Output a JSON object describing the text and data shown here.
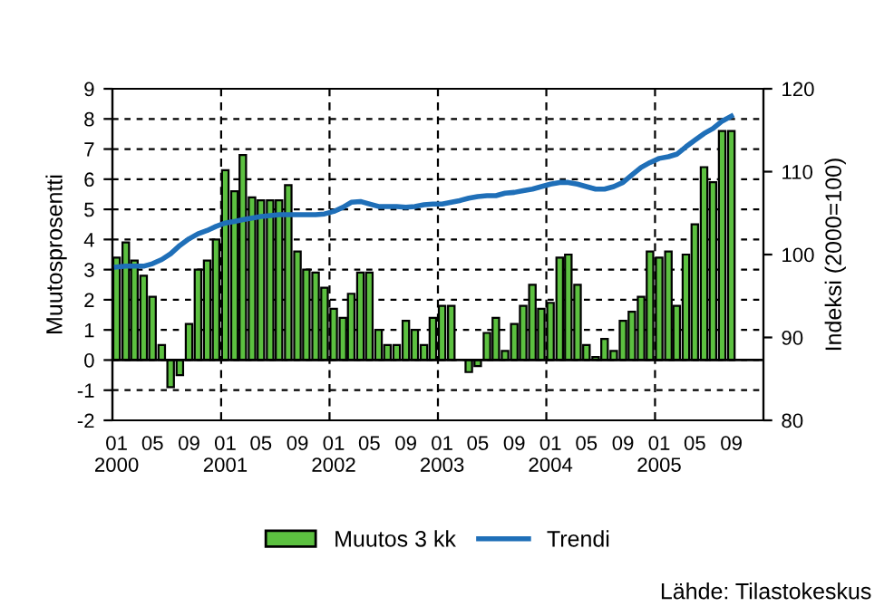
{
  "chart_data": {
    "type": "bar",
    "x": [
      "2000-01",
      "2000-02",
      "2000-03",
      "2000-04",
      "2000-05",
      "2000-06",
      "2000-07",
      "2000-08",
      "2000-09",
      "2000-10",
      "2000-11",
      "2000-12",
      "2001-01",
      "2001-02",
      "2001-03",
      "2001-04",
      "2001-05",
      "2001-06",
      "2001-07",
      "2001-08",
      "2001-09",
      "2001-10",
      "2001-11",
      "2001-12",
      "2002-01",
      "2002-02",
      "2002-03",
      "2002-04",
      "2002-05",
      "2002-06",
      "2002-07",
      "2002-08",
      "2002-09",
      "2002-10",
      "2002-11",
      "2002-12",
      "2003-01",
      "2003-02",
      "2003-03",
      "2003-04",
      "2003-05",
      "2003-06",
      "2003-07",
      "2003-08",
      "2003-09",
      "2003-10",
      "2003-11",
      "2003-12",
      "2004-01",
      "2004-02",
      "2004-03",
      "2004-04",
      "2004-05",
      "2004-06",
      "2004-07",
      "2004-08",
      "2004-09",
      "2004-10",
      "2004-11",
      "2004-12",
      "2005-01",
      "2005-02",
      "2005-03",
      "2005-04",
      "2005-05",
      "2005-06",
      "2005-07",
      "2005-08",
      "2005-09"
    ],
    "series": [
      {
        "name": "Muutos 3 kk",
        "color": "#5cc040",
        "values": [
          3.4,
          3.9,
          3.3,
          2.8,
          2.1,
          0.5,
          -0.9,
          -0.5,
          1.2,
          3.0,
          3.3,
          4.0,
          6.3,
          5.6,
          6.8,
          5.4,
          5.3,
          5.3,
          5.3,
          5.8,
          3.6,
          3.0,
          2.9,
          2.4,
          1.7,
          1.4,
          2.2,
          2.9,
          2.9,
          1.0,
          0.5,
          0.5,
          1.3,
          1.0,
          0.5,
          1.4,
          1.8,
          1.8,
          null,
          -0.4,
          -0.2,
          0.9,
          1.4,
          0.3,
          1.2,
          1.8,
          2.5,
          1.7,
          1.9,
          3.4,
          3.5,
          2.5,
          0.5,
          0.1,
          0.7,
          0.3,
          1.3,
          1.6,
          2.1,
          3.6,
          3.4,
          3.6,
          1.8,
          3.5,
          4.5,
          6.4,
          5.9,
          7.6,
          7.6
        ]
      },
      {
        "name": "Trendi",
        "type": "line",
        "axis": "y2",
        "color": "#1f6fb8",
        "values": [
          98.5,
          98.6,
          98.6,
          98.6,
          98.9,
          99.4,
          100.1,
          101.1,
          101.9,
          102.5,
          102.9,
          103.4,
          103.8,
          104.0,
          104.2,
          104.4,
          104.6,
          104.7,
          104.8,
          104.8,
          104.8,
          104.8,
          104.8,
          104.9,
          105.2,
          105.7,
          106.3,
          106.4,
          106.1,
          105.8,
          105.8,
          105.8,
          105.7,
          105.8,
          106.0,
          106.1,
          106.1,
          106.3,
          106.5,
          106.8,
          107.0,
          107.1,
          107.1,
          107.4,
          107.5,
          107.7,
          107.9,
          108.2,
          108.5,
          108.7,
          108.7,
          108.5,
          108.2,
          107.9,
          107.9,
          108.2,
          108.7,
          109.6,
          110.5,
          111.1,
          111.6,
          111.8,
          112.1,
          113.0,
          113.8,
          114.6,
          115.2,
          116.1,
          116.7
        ]
      }
    ],
    "ylabel": "Muutosprosentti",
    "y2label": "Indeksi (2000=100)",
    "xlim": [
      "2000-01-01",
      "2006-01-01"
    ],
    "xticks": [
      {
        "value": "2000-01",
        "label": "01\n2000"
      },
      {
        "value": "2000-05",
        "label": "05"
      },
      {
        "value": "2000-09",
        "label": "09"
      },
      {
        "value": "2001-01",
        "label": "01\n2001"
      },
      {
        "value": "2001-05",
        "label": "05"
      },
      {
        "value": "2001-09",
        "label": "09"
      },
      {
        "value": "2002-01",
        "label": "01\n2002"
      },
      {
        "value": "2002-05",
        "label": "05"
      },
      {
        "value": "2002-09",
        "label": "09"
      },
      {
        "value": "2003-01",
        "label": "01\n2003"
      },
      {
        "value": "2003-05",
        "label": "05"
      },
      {
        "value": "2003-09",
        "label": "09"
      },
      {
        "value": "2004-01",
        "label": "01\n2004"
      },
      {
        "value": "2004-05",
        "label": "05"
      },
      {
        "value": "2004-09",
        "label": "09"
      },
      {
        "value": "2005-01",
        "label": "01\n2005"
      },
      {
        "value": "2005-05",
        "label": "05"
      },
      {
        "value": "2005-09",
        "label": "09"
      }
    ],
    "ylim": [
      -2,
      9
    ],
    "yticks": [
      -2,
      -1,
      0,
      1,
      2,
      3,
      4,
      5,
      6,
      7,
      8,
      9
    ],
    "y2lim": [
      80,
      120
    ],
    "y2ticks": [
      80,
      90,
      100,
      110,
      120
    ],
    "ref_lines": [
      {
        "axis": "x",
        "value": "2001-01-01",
        "line_style": "dashed",
        "color": "#000000"
      },
      {
        "axis": "x",
        "value": "2002-01-01",
        "line_style": "dashed",
        "color": "#000000"
      },
      {
        "axis": "x",
        "value": "2003-01-01",
        "line_style": "dashed",
        "color": "#000000"
      },
      {
        "axis": "x",
        "value": "2004-01-01",
        "line_style": "dashed",
        "color": "#000000"
      },
      {
        "axis": "x",
        "value": "2005-01-01",
        "line_style": "dashed",
        "color": "#000000"
      }
    ],
    "grid": "y",
    "legend": "bottom",
    "annotations": [
      "Lähde: Tilastokeskus"
    ]
  }
}
